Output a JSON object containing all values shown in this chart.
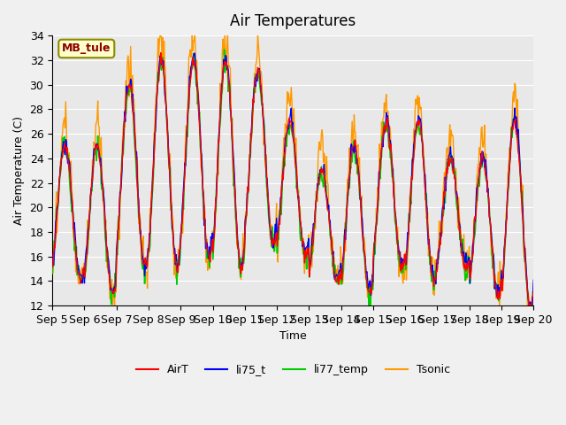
{
  "title": "Air Temperatures",
  "ylabel": "Air Temperature (C)",
  "xlabel": "Time",
  "annotation": "MB_tule",
  "ylim": [
    12,
    34
  ],
  "series_labels": [
    "AirT",
    "li75_t",
    "li77_temp",
    "Tsonic"
  ],
  "series_colors": [
    "#ff0000",
    "#0000ff",
    "#00cc00",
    "#ff9900"
  ],
  "x_tick_labels": [
    "Sep 5",
    "Sep 6",
    "Sep 7",
    "Sep 8",
    "Sep 9",
    "Sep 10",
    "Sep 11",
    "Sep 12",
    "Sep 13",
    "Sep 14",
    "Sep 15",
    "Sep 16",
    "Sep 17",
    "Sep 18",
    "Sep 19",
    "Sep 20"
  ],
  "background_color": "#e8e8e8",
  "plot_bg_color": "#e8e8e8",
  "n_days": 15,
  "pts_per_day": 48,
  "yticks": [
    12,
    14,
    16,
    18,
    20,
    22,
    24,
    26,
    28,
    30,
    32,
    34
  ]
}
